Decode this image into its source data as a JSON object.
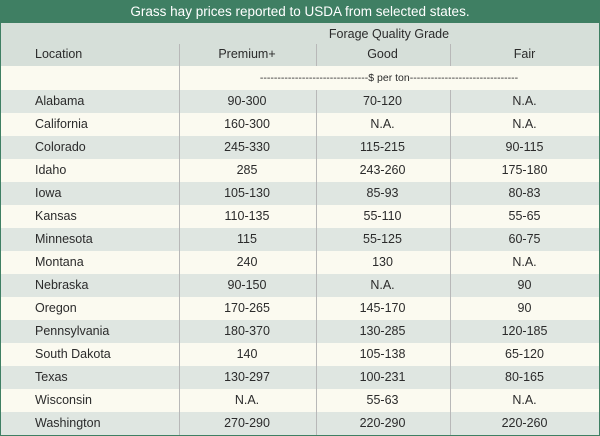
{
  "title": "Grass hay prices reported to USDA from selected states.",
  "header": {
    "group_label": "Forage Quality Grade",
    "location_label": "Location",
    "columns": [
      "Premium+",
      "Good",
      "Fair"
    ]
  },
  "units": "-------------------------------$ per ton-------------------------------",
  "rows": [
    {
      "location": "Alabama",
      "premium": "90-300",
      "good": "70-120",
      "fair": "N.A."
    },
    {
      "location": "California",
      "premium": "160-300",
      "good": "N.A.",
      "fair": "N.A."
    },
    {
      "location": "Colorado",
      "premium": "245-330",
      "good": "115-215",
      "fair": "90-115"
    },
    {
      "location": "Idaho",
      "premium": "285",
      "good": "243-260",
      "fair": "175-180"
    },
    {
      "location": "Iowa",
      "premium": "105-130",
      "good": "85-93",
      "fair": "80-83"
    },
    {
      "location": "Kansas",
      "premium": "110-135",
      "good": "55-110",
      "fair": "55-65"
    },
    {
      "location": "Minnesota",
      "premium": "115",
      "good": "55-125",
      "fair": "60-75"
    },
    {
      "location": "Montana",
      "premium": "240",
      "good": "130",
      "fair": "N.A."
    },
    {
      "location": "Nebraska",
      "premium": "90-150",
      "good": "N.A.",
      "fair": "90"
    },
    {
      "location": "Oregon",
      "premium": "170-265",
      "good": "145-170",
      "fair": "90"
    },
    {
      "location": "Pennsylvania",
      "premium": "180-370",
      "good": "130-285",
      "fair": "120-185"
    },
    {
      "location": "South Dakota",
      "premium": "140",
      "good": "105-138",
      "fair": "65-120"
    },
    {
      "location": "Texas",
      "premium": "130-297",
      "good": "100-231",
      "fair": "80-165"
    },
    {
      "location": "Wisconsin",
      "premium": "N.A.",
      "good": "55-63",
      "fair": "N.A."
    },
    {
      "location": "Washington",
      "premium": "270-290",
      "good": "220-290",
      "fair": "220-260"
    }
  ]
}
